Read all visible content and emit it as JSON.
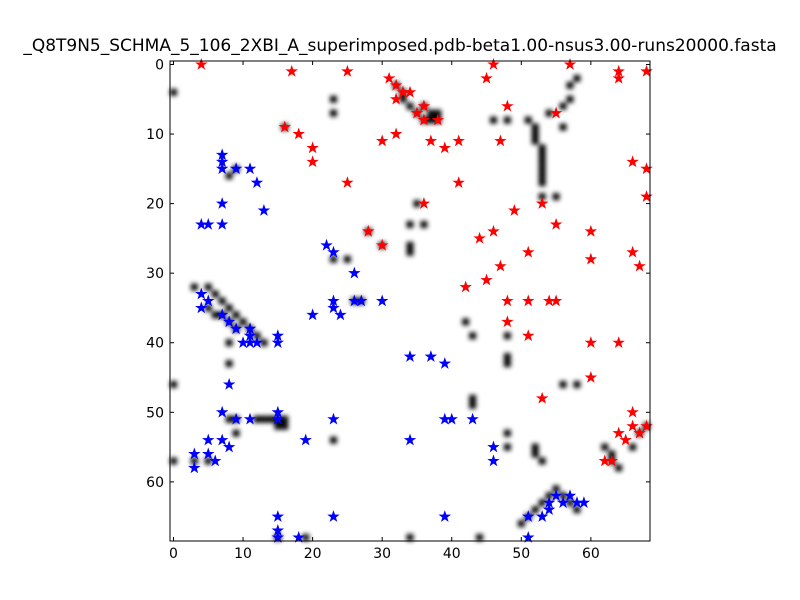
{
  "chart_data": {
    "type": "scatter",
    "title": "_Q8T9N5_SCHMA_5_106_2XBI_A_superimposed.pdb-beta1.00-nsus3.00-runs20000.fasta",
    "xlabel": "",
    "ylabel": "",
    "xlim": [
      -0.5,
      68.5
    ],
    "ylim": [
      68.5,
      -0.5
    ],
    "x_ticks": [
      0,
      10,
      20,
      30,
      40,
      50,
      60
    ],
    "y_ticks": [
      0,
      10,
      20,
      30,
      40,
      50,
      60
    ],
    "grid": false,
    "legend": "none",
    "heatmap_color": "#000000",
    "series": [
      {
        "color": "#ff0000",
        "marker": "star",
        "points": [
          [
            4,
            0
          ],
          [
            17,
            1
          ],
          [
            25,
            1
          ],
          [
            31,
            2
          ],
          [
            32,
            3
          ],
          [
            33,
            4
          ],
          [
            32,
            5
          ],
          [
            34,
            4
          ],
          [
            36,
            6
          ],
          [
            35,
            7
          ],
          [
            38,
            8
          ],
          [
            36,
            8
          ],
          [
            37,
            11
          ],
          [
            39,
            12
          ],
          [
            41,
            11
          ],
          [
            45,
            2
          ],
          [
            46,
            0
          ],
          [
            48,
            6
          ],
          [
            47,
            11
          ],
          [
            55,
            7
          ],
          [
            57,
            0
          ],
          [
            64,
            1
          ],
          [
            64,
            2
          ],
          [
            68,
            1
          ],
          [
            16,
            9
          ],
          [
            18,
            10
          ],
          [
            20,
            12
          ],
          [
            20,
            14
          ],
          [
            25,
            17
          ],
          [
            30,
            11
          ],
          [
            32,
            10
          ],
          [
            41,
            17
          ],
          [
            36,
            20
          ],
          [
            46,
            24
          ],
          [
            44,
            25
          ],
          [
            51,
            27
          ],
          [
            47,
            29
          ],
          [
            45,
            31
          ],
          [
            42,
            32
          ],
          [
            28,
            24
          ],
          [
            30,
            26
          ],
          [
            49,
            21
          ],
          [
            53,
            20
          ],
          [
            55,
            23
          ],
          [
            60,
            24
          ],
          [
            60,
            28
          ],
          [
            66,
            27
          ],
          [
            67,
            29
          ],
          [
            66,
            14
          ],
          [
            68,
            15
          ],
          [
            68,
            19
          ],
          [
            48,
            34
          ],
          [
            51,
            34
          ],
          [
            54,
            34
          ],
          [
            55,
            34
          ],
          [
            48,
            37
          ],
          [
            51,
            39
          ],
          [
            60,
            40
          ],
          [
            64,
            40
          ],
          [
            60,
            45
          ],
          [
            53,
            48
          ],
          [
            66,
            50
          ],
          [
            64,
            53
          ],
          [
            65,
            54
          ],
          [
            66,
            52
          ],
          [
            67,
            53
          ],
          [
            68,
            52
          ],
          [
            62,
            57
          ],
          [
            63,
            57
          ]
        ]
      },
      {
        "color": "#0000ff",
        "marker": "star",
        "points": [
          [
            7,
            13
          ],
          [
            7,
            14
          ],
          [
            7,
            15
          ],
          [
            9,
            15
          ],
          [
            11,
            15
          ],
          [
            12,
            17
          ],
          [
            7,
            20
          ],
          [
            13,
            21
          ],
          [
            4,
            23
          ],
          [
            5,
            23
          ],
          [
            7,
            23
          ],
          [
            22,
            26
          ],
          [
            23,
            27
          ],
          [
            26,
            30
          ],
          [
            23,
            34
          ],
          [
            23,
            35
          ],
          [
            24,
            36
          ],
          [
            26,
            34
          ],
          [
            27,
            34
          ],
          [
            30,
            34
          ],
          [
            20,
            36
          ],
          [
            4,
            33
          ],
          [
            5,
            34
          ],
          [
            4,
            35
          ],
          [
            7,
            36
          ],
          [
            8,
            37
          ],
          [
            9,
            38
          ],
          [
            10,
            40
          ],
          [
            11,
            38
          ],
          [
            11,
            39
          ],
          [
            11,
            40
          ],
          [
            12,
            40
          ],
          [
            15,
            39
          ],
          [
            15,
            40
          ],
          [
            34,
            42
          ],
          [
            37,
            42
          ],
          [
            39,
            43
          ],
          [
            8,
            46
          ],
          [
            7,
            50
          ],
          [
            9,
            51
          ],
          [
            11,
            51
          ],
          [
            15,
            50
          ],
          [
            15,
            51
          ],
          [
            23,
            51
          ],
          [
            39,
            51
          ],
          [
            40,
            51
          ],
          [
            43,
            51
          ],
          [
            7,
            54
          ],
          [
            5,
            54
          ],
          [
            3,
            56
          ],
          [
            5,
            56
          ],
          [
            6,
            57
          ],
          [
            3,
            58
          ],
          [
            8,
            55
          ],
          [
            19,
            54
          ],
          [
            34,
            54
          ],
          [
            46,
            55
          ],
          [
            46,
            57
          ],
          [
            15,
            65
          ],
          [
            15,
            67
          ],
          [
            15,
            68
          ],
          [
            18,
            68
          ],
          [
            23,
            65
          ],
          [
            39,
            65
          ],
          [
            51,
            65
          ],
          [
            51,
            68
          ],
          [
            53,
            65
          ],
          [
            54,
            64
          ],
          [
            54,
            63
          ],
          [
            55,
            62
          ],
          [
            56,
            63
          ],
          [
            57,
            62
          ],
          [
            58,
            63
          ],
          [
            59,
            63
          ]
        ]
      }
    ],
    "heatmap_cells": [
      [
        0,
        4
      ],
      [
        23,
        5
      ],
      [
        23,
        7
      ],
      [
        32,
        3
      ],
      [
        33,
        4
      ],
      [
        33,
        5
      ],
      [
        34,
        6
      ],
      [
        35,
        7
      ],
      [
        36,
        8
      ],
      [
        37,
        8
      ],
      [
        38,
        8
      ],
      [
        36,
        6
      ],
      [
        37,
        7
      ],
      [
        38,
        7
      ],
      [
        46,
        8
      ],
      [
        48,
        8
      ],
      [
        51,
        8
      ],
      [
        52,
        9
      ],
      [
        52,
        10
      ],
      [
        52,
        11
      ],
      [
        53,
        12
      ],
      [
        53,
        13
      ],
      [
        53,
        14
      ],
      [
        53,
        15
      ],
      [
        53,
        16
      ],
      [
        53,
        17
      ],
      [
        53,
        19
      ],
      [
        55,
        19
      ],
      [
        54,
        7
      ],
      [
        56,
        6
      ],
      [
        57,
        5
      ],
      [
        57,
        3
      ],
      [
        58,
        2
      ],
      [
        56,
        9
      ],
      [
        16,
        9
      ],
      [
        8,
        16
      ],
      [
        9,
        15
      ],
      [
        34,
        23
      ],
      [
        36,
        23
      ],
      [
        34,
        26
      ],
      [
        34,
        27
      ],
      [
        35,
        20
      ],
      [
        23,
        28
      ],
      [
        25,
        28
      ],
      [
        28,
        24
      ],
      [
        30,
        26
      ],
      [
        26,
        34
      ],
      [
        27,
        34
      ],
      [
        3,
        32
      ],
      [
        5,
        32
      ],
      [
        6,
        33
      ],
      [
        7,
        34
      ],
      [
        8,
        35
      ],
      [
        9,
        36
      ],
      [
        10,
        37
      ],
      [
        11,
        38
      ],
      [
        12,
        39
      ],
      [
        13,
        40
      ],
      [
        5,
        35
      ],
      [
        6,
        36
      ],
      [
        7,
        36
      ],
      [
        8,
        37
      ],
      [
        8,
        40
      ],
      [
        8,
        43
      ],
      [
        9,
        38
      ],
      [
        42,
        37
      ],
      [
        43,
        39
      ],
      [
        48,
        39
      ],
      [
        48,
        42
      ],
      [
        48,
        43
      ],
      [
        43,
        48
      ],
      [
        43,
        49
      ],
      [
        0,
        46
      ],
      [
        8,
        51
      ],
      [
        9,
        51
      ],
      [
        12,
        51
      ],
      [
        13,
        51
      ],
      [
        14,
        51
      ],
      [
        15,
        51
      ],
      [
        16,
        51
      ],
      [
        15,
        52
      ],
      [
        16,
        52
      ],
      [
        9,
        53
      ],
      [
        0,
        57
      ],
      [
        3,
        57
      ],
      [
        5,
        57
      ],
      [
        23,
        54
      ],
      [
        48,
        53
      ],
      [
        48,
        55
      ],
      [
        52,
        55
      ],
      [
        52,
        56
      ],
      [
        53,
        57
      ],
      [
        62,
        55
      ],
      [
        63,
        56
      ],
      [
        63,
        57
      ],
      [
        64,
        58
      ],
      [
        66,
        55
      ],
      [
        67,
        53
      ],
      [
        68,
        52
      ],
      [
        50,
        66
      ],
      [
        51,
        65
      ],
      [
        52,
        64
      ],
      [
        53,
        63
      ],
      [
        54,
        62
      ],
      [
        55,
        61
      ],
      [
        56,
        62
      ],
      [
        57,
        63
      ],
      [
        58,
        64
      ],
      [
        15,
        68
      ],
      [
        19,
        68
      ],
      [
        56,
        46
      ],
      [
        58,
        46
      ],
      [
        44,
        68
      ],
      [
        34,
        68
      ]
    ]
  }
}
